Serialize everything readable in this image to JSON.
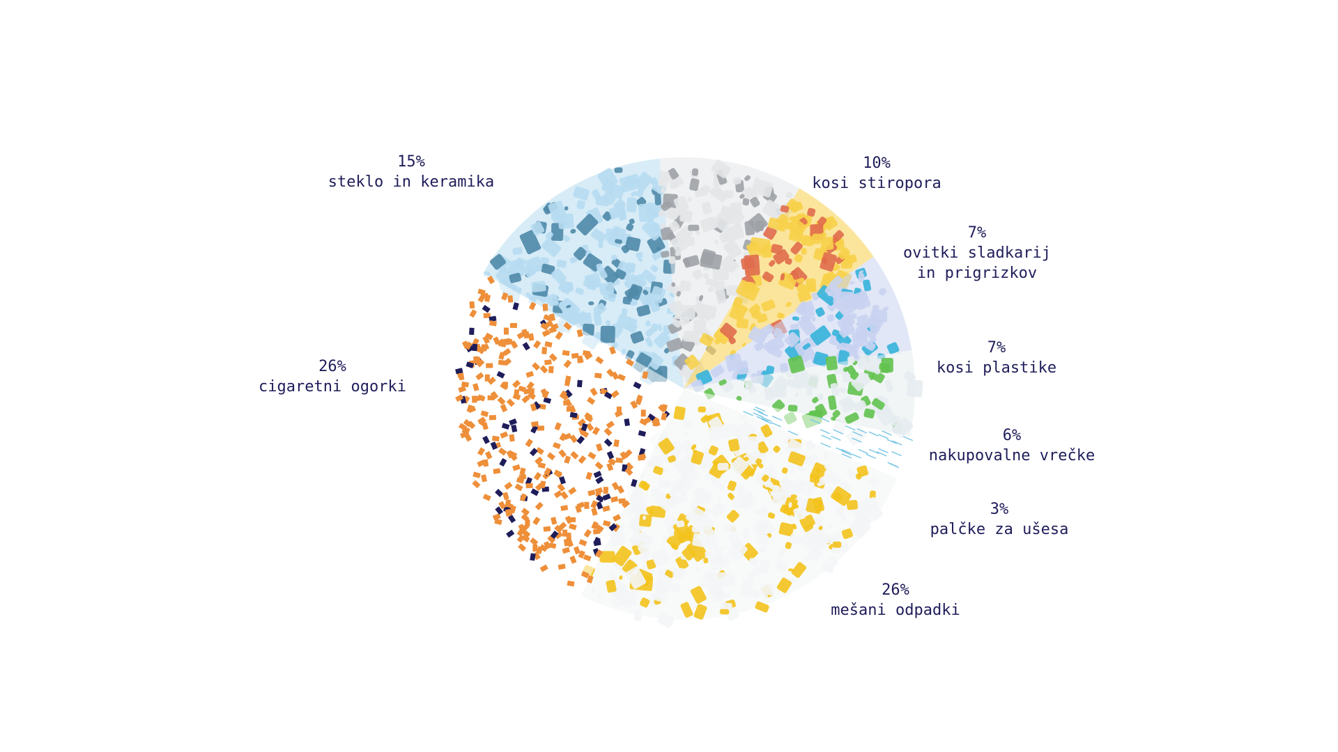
{
  "chart_data": {
    "type": "pie",
    "title": "",
    "slices": [
      {
        "id": "steklo",
        "pct_label": "15%",
        "value": 15,
        "lines": [
          "steklo in keramika"
        ],
        "color": "#b7dcf1",
        "accent": "#4f8aa8"
      },
      {
        "id": "stiropor",
        "pct_label": "10%",
        "value": 10,
        "lines": [
          "kosi stiropora"
        ],
        "color": "#e3e6e8",
        "accent": "#9ea2a6"
      },
      {
        "id": "ovitki",
        "pct_label": "7%",
        "value": 7,
        "lines": [
          "ovitki sladkarij",
          "in prigrizkov"
        ],
        "color": "#f7d04a",
        "accent": "#e06c4c"
      },
      {
        "id": "plastika",
        "pct_label": "7%",
        "value": 7,
        "lines": [
          "kosi plastike"
        ],
        "color": "#c9d3f1",
        "accent": "#36b2d9"
      },
      {
        "id": "vrecke",
        "pct_label": "6%",
        "value": 6,
        "lines": [
          "nakupovalne vrečke"
        ],
        "color": "#e6ecef",
        "accent": "#62c24f"
      },
      {
        "id": "palcke",
        "pct_label": "3%",
        "value": 3,
        "lines": [
          "palčke za ušesa"
        ],
        "color": "#ffffff",
        "accent": "#7fc9e6"
      },
      {
        "id": "mesani",
        "pct_label": "26%",
        "value": 26,
        "lines": [
          "mešani odpadki"
        ],
        "color": "#f3f5f6",
        "accent": "#f3c21c"
      },
      {
        "id": "cigarete",
        "pct_label": "26%",
        "value": 26,
        "lines": [
          "cigaretni ogorki"
        ],
        "color": "#ffffff",
        "accent": "#ee8f3a"
      }
    ]
  }
}
